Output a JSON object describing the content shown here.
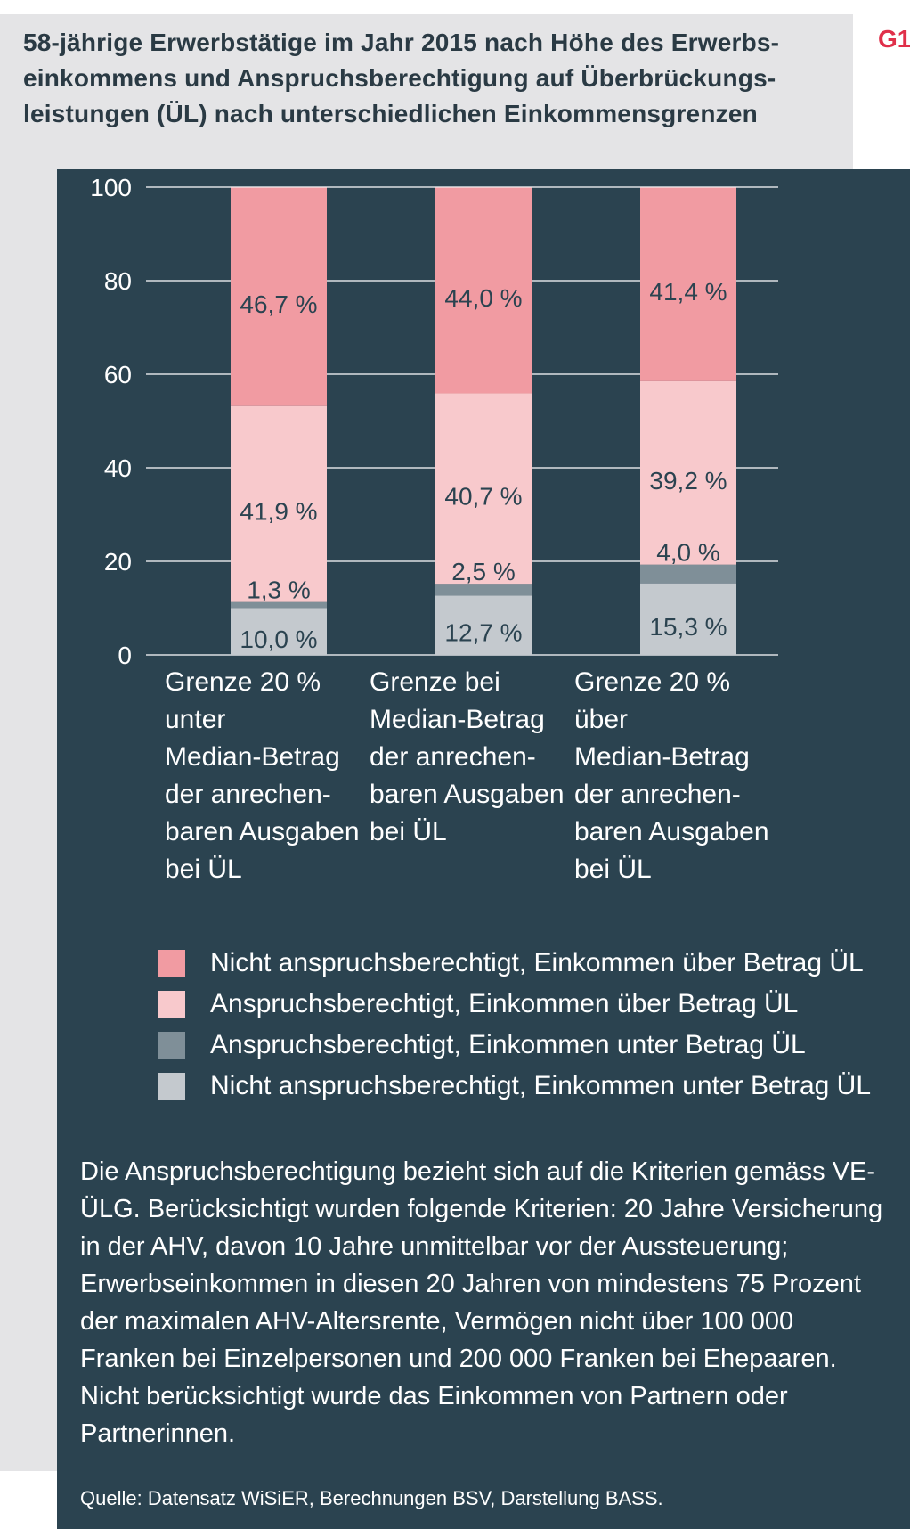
{
  "figure": {
    "title": "58-jährige Erwerbstätige im Jahr 2015 nach Höhe des Erwerbs-\neinkommens und Anspruchsberechtigung auf Überbrückungs-\nleistungen (ÜL) nach unterschiedlichen Einkommensgrenzen",
    "label": "G1",
    "note": "Die Anspruchsberechtigung bezieht sich auf die Kriterien gemäss VE-ÜLG. Berücksichtigt wurden folgende Kriterien: 20 Jahre Versicherung in der AHV, davon 10 Jahre unmittelbar vor der Aussteuerung; Erwerbseinkommen in diesen 20 Jahren von mindestens 75 Prozent der maximalen AHV-Altersrente, Vermögen nicht über 100 000 Franken bei Einzelpersonen und 200 000 Franken bei Ehepaaren. Nicht berücksichtigt wurde das Einkommen von Partnern oder Partnerinnen.",
    "source": "Quelle: Datensatz WiSiER, Berechnungen BSV, Darstellung BASS."
  },
  "chart_data": {
    "type": "bar",
    "stacked": true,
    "categories": [
      "Grenze 20 % unter\nMedian-Betrag\nder anrechen-\nbaren Ausgaben\nbei ÜL",
      "Grenze bei\nMedian-Betrag\nder anrechen-\nbaren Ausgaben\nbei ÜL",
      "Grenze 20 % über\nMedian-Betrag\nder anrechen-\nbaren Ausgaben\nbei ÜL"
    ],
    "series": [
      {
        "name": "Nicht anspruchsberechtigt, Einkommen unter Betrag ÜL",
        "values": [
          10.0,
          12.7,
          15.3
        ],
        "labels": [
          "10,0 %",
          "12,7 %",
          "15,3 %"
        ],
        "color": "#c4c9ce"
      },
      {
        "name": "Anspruchsberechtigt, Einkommen unter Betrag ÜL",
        "values": [
          1.3,
          2.5,
          4.0
        ],
        "labels": [
          "1,3 %",
          "2,5 %",
          "4,0 %"
        ],
        "color": "#7f8f98"
      },
      {
        "name": "Anspruchsberechtigt, Einkommen über Betrag ÜL",
        "values": [
          41.9,
          40.7,
          39.2
        ],
        "labels": [
          "41,9 %",
          "40,7 %",
          "39,2 %"
        ],
        "color": "#f8c9cc"
      },
      {
        "name": "Nicht anspruchsberechtigt, Einkommen über Betrag ÜL",
        "values": [
          46.7,
          44.0,
          41.4
        ],
        "labels": [
          "46,7 %",
          "44,0 %",
          "41,4 %"
        ],
        "color": "#f19ba2"
      }
    ],
    "legend_order": [
      3,
      2,
      1,
      0
    ],
    "legend_placement": "bottom",
    "ylim": [
      0,
      100
    ],
    "yticks": [
      0,
      20,
      40,
      60,
      80,
      100
    ],
    "grid": true
  }
}
